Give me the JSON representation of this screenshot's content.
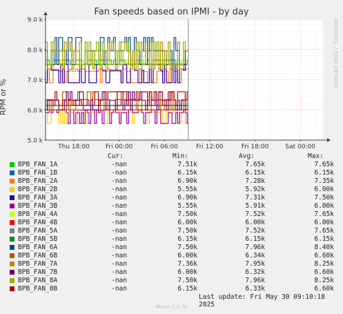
{
  "title": "Fan speeds based on IPMI - by day",
  "side_text": "RRDTOOL / TOBI OETIKER",
  "footer": "Munin 2.0.75",
  "last_update": "Last update: Fri May 30 09:10:18 2025",
  "legend_headers": {
    "cur": "Cur:",
    "min": "Min:",
    "avg": "Avg:",
    "max": "Max:"
  },
  "legend": [
    {
      "name": "BPB_FAN_1A",
      "color": "#00cc00",
      "cur": "-nan",
      "min": "7.51k",
      "avg": "7.65k",
      "max": "7.65k"
    },
    {
      "name": "BPB_FAN_1B",
      "color": "#0066b3",
      "cur": "-nan",
      "min": "6.15k",
      "avg": "6.15k",
      "max": "6.15k"
    },
    {
      "name": "BPB_FAN_2A",
      "color": "#ff8000",
      "cur": "-nan",
      "min": "6.90k",
      "avg": "7.28k",
      "max": "7.35k"
    },
    {
      "name": "BPB_FAN_2B",
      "color": "#ffcc00",
      "cur": "-nan",
      "min": "5.55k",
      "avg": "5.92k",
      "max": "6.00k"
    },
    {
      "name": "BPB_FAN_3A",
      "color": "#330099",
      "cur": "-nan",
      "min": "6.90k",
      "avg": "7.31k",
      "max": "7.50k"
    },
    {
      "name": "BPB_FAN_3B",
      "color": "#990099",
      "cur": "-nan",
      "min": "5.55k",
      "avg": "5.91k",
      "max": "6.00k"
    },
    {
      "name": "BPB_FAN_4A",
      "color": "#ccff00",
      "cur": "-nan",
      "min": "7.50k",
      "avg": "7.52k",
      "max": "7.65k"
    },
    {
      "name": "BPB_FAN_4B",
      "color": "#ff0000",
      "cur": "-nan",
      "min": "6.00k",
      "avg": "6.00k",
      "max": "6.00k"
    },
    {
      "name": "BPB_FAN_5A",
      "color": "#808080",
      "cur": "-nan",
      "min": "7.50k",
      "avg": "7.52k",
      "max": "7.65k"
    },
    {
      "name": "BPB_FAN_5B",
      "color": "#008f00",
      "cur": "-nan",
      "min": "6.15k",
      "avg": "6.15k",
      "max": "6.15k"
    },
    {
      "name": "BPB_FAN_6A",
      "color": "#00487d",
      "cur": "-nan",
      "min": "7.50k",
      "avg": "7.96k",
      "max": "8.40k"
    },
    {
      "name": "BPB_FAN_6B",
      "color": "#b35a00",
      "cur": "-nan",
      "min": "6.00k",
      "avg": "6.34k",
      "max": "6.60k"
    },
    {
      "name": "BPB_FAN_7A",
      "color": "#b38f00",
      "cur": "-nan",
      "min": "7.36k",
      "avg": "7.95k",
      "max": "8.25k"
    },
    {
      "name": "BPB_FAN_7B",
      "color": "#6b006b",
      "cur": "-nan",
      "min": "6.00k",
      "avg": "6.32k",
      "max": "6.60k"
    },
    {
      "name": "BPB_FAN_8A",
      "color": "#8fb300",
      "cur": "-nan",
      "min": "7.50k",
      "avg": "7.96k",
      "max": "8.25k"
    },
    {
      "name": "BPB_FAN_8B",
      "color": "#b30000",
      "cur": "-nan",
      "min": "6.15k",
      "avg": "6.33k",
      "max": "6.60k"
    }
  ],
  "chart_data": {
    "type": "line",
    "title": "Fan speeds based on IPMI - by day",
    "ylabel": "RPM or %",
    "xlabel": "",
    "ylim": [
      5000,
      9000
    ],
    "yticks": [
      5000,
      6000,
      7000,
      8000,
      9000
    ],
    "ytick_labels": [
      "5.0 k",
      "6.0 k",
      "7.0 k",
      "8.0 k",
      "9.0 k"
    ],
    "xlim_hours": [
      -3.75,
      33.0
    ],
    "xticks": [
      0,
      6,
      12,
      18,
      24,
      30
    ],
    "xtick_labels": [
      "Thu 18:00",
      "Fri 00:00",
      "Fri 06:00",
      "Fri 12:00",
      "Fri 18:00",
      "Sat 00:00"
    ],
    "data_end_hour": 15.16,
    "grid": true,
    "series": [
      {
        "name": "BPB_FAN_1A",
        "color": "#00cc00",
        "min": 7510,
        "avg": 7650,
        "max": 7650
      },
      {
        "name": "BPB_FAN_1B",
        "color": "#0066b3",
        "min": 6150,
        "avg": 6150,
        "max": 6150
      },
      {
        "name": "BPB_FAN_2A",
        "color": "#ff8000",
        "min": 6900,
        "avg": 7280,
        "max": 7350
      },
      {
        "name": "BPB_FAN_2B",
        "color": "#ffcc00",
        "min": 5550,
        "avg": 5920,
        "max": 6000
      },
      {
        "name": "BPB_FAN_3A",
        "color": "#330099",
        "min": 6900,
        "avg": 7310,
        "max": 7500
      },
      {
        "name": "BPB_FAN_3B",
        "color": "#990099",
        "min": 5550,
        "avg": 5910,
        "max": 6000
      },
      {
        "name": "BPB_FAN_4A",
        "color": "#ccff00",
        "min": 7500,
        "avg": 7520,
        "max": 7650
      },
      {
        "name": "BPB_FAN_4B",
        "color": "#ff0000",
        "min": 6000,
        "avg": 6000,
        "max": 6000
      },
      {
        "name": "BPB_FAN_5A",
        "color": "#808080",
        "min": 7500,
        "avg": 7520,
        "max": 7650
      },
      {
        "name": "BPB_FAN_5B",
        "color": "#008f00",
        "min": 6150,
        "avg": 6150,
        "max": 6150
      },
      {
        "name": "BPB_FAN_6A",
        "color": "#00487d",
        "min": 7500,
        "avg": 7960,
        "max": 8400
      },
      {
        "name": "BPB_FAN_6B",
        "color": "#b35a00",
        "min": 6000,
        "avg": 6340,
        "max": 6600
      },
      {
        "name": "BPB_FAN_7A",
        "color": "#b38f00",
        "min": 7360,
        "avg": 7950,
        "max": 8250
      },
      {
        "name": "BPB_FAN_7B",
        "color": "#6b006b",
        "min": 6000,
        "avg": 6320,
        "max": 6600
      },
      {
        "name": "BPB_FAN_8A",
        "color": "#8fb300",
        "min": 7500,
        "avg": 7960,
        "max": 8250
      },
      {
        "name": "BPB_FAN_8B",
        "color": "#b30000",
        "min": 6150,
        "avg": 6330,
        "max": 6600
      }
    ]
  }
}
